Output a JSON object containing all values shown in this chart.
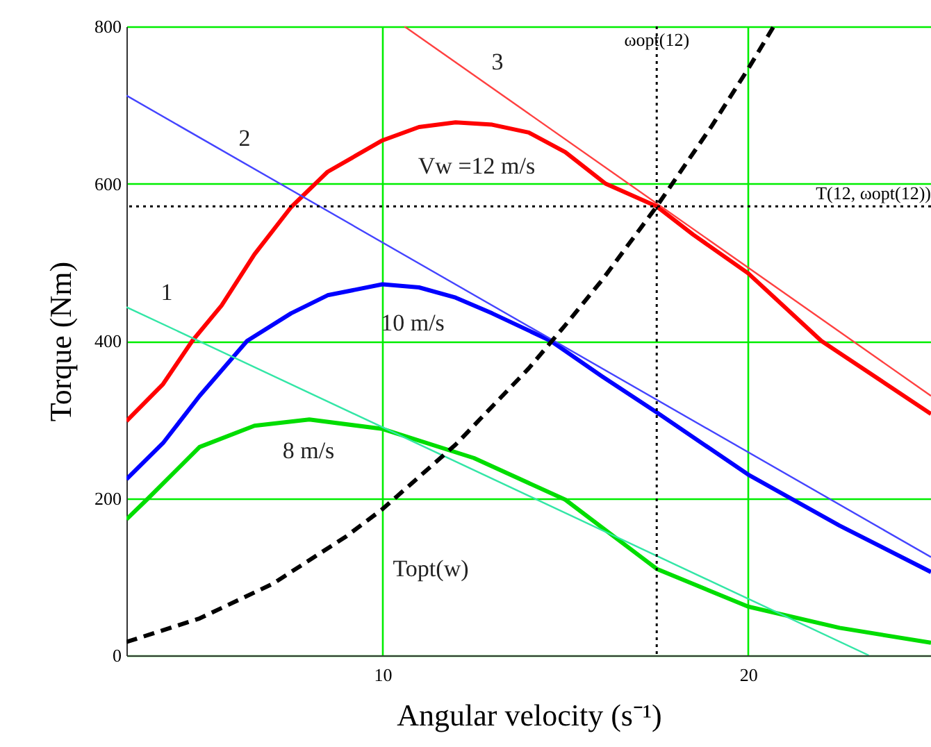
{
  "chart_data": {
    "type": "line",
    "xlabel": "Angular velocity (s⁻¹)",
    "ylabel": "Torque (Nm)",
    "xlim": [
      3,
      25
    ],
    "ylim": [
      0,
      800
    ],
    "xticks": [
      10,
      20
    ],
    "yticks": [
      0,
      200,
      400,
      600,
      800
    ],
    "grid": true,
    "marker": "none",
    "series": [
      {
        "name": "Vw =12 m/s",
        "color": "#ff0000",
        "line_style": "solid",
        "x": [
          3,
          4,
          4.8,
          5.6,
          6.5,
          7.5,
          8.5,
          10,
          11,
          12,
          13,
          14,
          15,
          16.1,
          17.5,
          18.5,
          20,
          22,
          25
        ],
        "values": [
          298,
          345,
          400,
          445,
          510,
          570,
          615,
          655,
          672,
          678,
          675,
          665,
          640,
          600,
          571,
          535,
          486,
          400,
          307
        ]
      },
      {
        "name": "10 m/s",
        "color": "#0000ff",
        "line_style": "solid",
        "x": [
          3,
          4,
          5,
          6.3,
          7.5,
          8.5,
          10,
          11,
          12,
          13,
          14.6,
          16,
          17.5,
          20,
          22.5,
          25
        ],
        "values": [
          224,
          270,
          330,
          400,
          435,
          458,
          472,
          468,
          455,
          435,
          400,
          355,
          309,
          230,
          165,
          106
        ]
      },
      {
        "name": "8 m/s",
        "color": "#00dd00",
        "line_style": "solid",
        "x": [
          3,
          3.6,
          5,
          6.5,
          8,
          10,
          12.5,
          15,
          17.5,
          20,
          22.5,
          25
        ],
        "values": [
          173,
          200,
          265,
          292,
          300,
          288,
          251,
          198,
          110,
          62,
          35,
          16
        ]
      },
      {
        "name": "1",
        "color": "#33e6a6",
        "line_style": "solid",
        "x": [
          3,
          23.3
        ],
        "values": [
          443,
          0
        ]
      },
      {
        "name": "2",
        "color": "#4444ff",
        "line_style": "solid",
        "x": [
          3,
          25
        ],
        "values": [
          712,
          125
        ]
      },
      {
        "name": "3",
        "color": "#ff4040",
        "line_style": "solid",
        "x": [
          10.6,
          25
        ],
        "values": [
          800,
          330
        ]
      },
      {
        "name": "Topt(w)",
        "color": "#000000",
        "line_style": "dashed",
        "x": [
          3,
          5,
          7,
          9,
          10,
          12,
          14,
          15,
          16,
          17.5,
          19,
          20,
          20.7
        ],
        "values": [
          17,
          47,
          91,
          151,
          186,
          268,
          365,
          420,
          477,
          571,
          673,
          746,
          800
        ]
      }
    ],
    "ref_lines": [
      {
        "axis": "x",
        "value": 17.5,
        "label": "ωopt(12)",
        "color": "#000000",
        "line_style": "dotted"
      },
      {
        "axis": "y",
        "value": 571,
        "label": "T(12, ωopt(12))",
        "color": "#000000",
        "line_style": "dotted"
      }
    ]
  }
}
